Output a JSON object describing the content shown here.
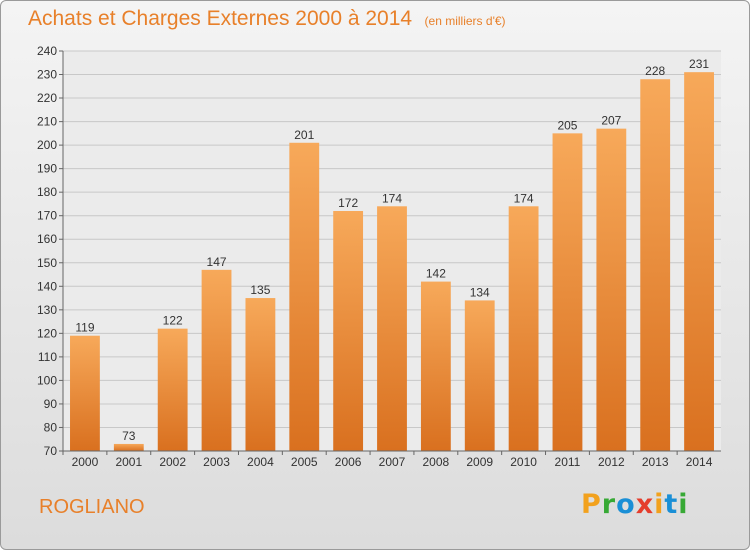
{
  "header": {
    "title": "Achats et Charges Externes 2000 à 2014",
    "subtitle": "(en milliers d'€)"
  },
  "location": "ROGLIANO",
  "brand": {
    "logo_text": "Proxiti",
    "letter_colors": [
      "#f2a11d",
      "#37a935",
      "#1a8fd6",
      "#e53d2c",
      "#f2a11d",
      "#1a8fd6",
      "#37a935"
    ]
  },
  "colors": {
    "bar_light": "#f7a95a",
    "bar_dark": "#d9701f",
    "accent": "#e8802a",
    "grid": "#c8c8c8"
  },
  "chart_data": {
    "type": "bar",
    "title": "Achats et Charges Externes 2000 à 2014",
    "subtitle": "(en milliers d'€)",
    "categories": [
      "2000",
      "2001",
      "2002",
      "2003",
      "2004",
      "2005",
      "2006",
      "2007",
      "2008",
      "2009",
      "2010",
      "2011",
      "2012",
      "2013",
      "2014"
    ],
    "values": [
      119,
      73,
      122,
      147,
      135,
      201,
      172,
      174,
      142,
      134,
      174,
      205,
      207,
      228,
      231
    ],
    "ylim": [
      70,
      240
    ],
    "yticks": [
      70,
      80,
      90,
      100,
      110,
      120,
      130,
      140,
      150,
      160,
      170,
      180,
      190,
      200,
      210,
      220,
      230,
      240
    ],
    "grid": true,
    "xlabel": "",
    "ylabel": ""
  }
}
